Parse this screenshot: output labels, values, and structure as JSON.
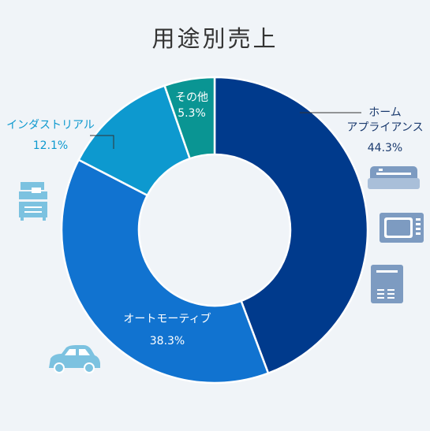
{
  "chart_data": {
    "type": "pie",
    "title": "用途別売上",
    "slices": [
      {
        "label_lines": [
          "ホーム",
          "アプライアンス"
        ],
        "value": 44.3,
        "value_text": "44.3%",
        "color": "#003a8c",
        "label_color": "#1a3a6e",
        "icon": "appliance-icons"
      },
      {
        "label_lines": [
          "オートモーティブ"
        ],
        "value": 38.3,
        "value_text": "38.3%",
        "color": "#1173d0",
        "label_color": "#ffffff",
        "icon": "car-icon"
      },
      {
        "label_lines": [
          "インダストリアル"
        ],
        "value": 12.1,
        "value_text": "12.1%",
        "color": "#0d99cf",
        "label_color": "#0d99cf",
        "icon": "copier-icon"
      },
      {
        "label_lines": [
          "その他"
        ],
        "value": 5.3,
        "value_text": "5.3%",
        "color": "#0a9593",
        "label_color": "#ffffff",
        "icon": ""
      }
    ],
    "hole": true,
    "legend": "none"
  }
}
